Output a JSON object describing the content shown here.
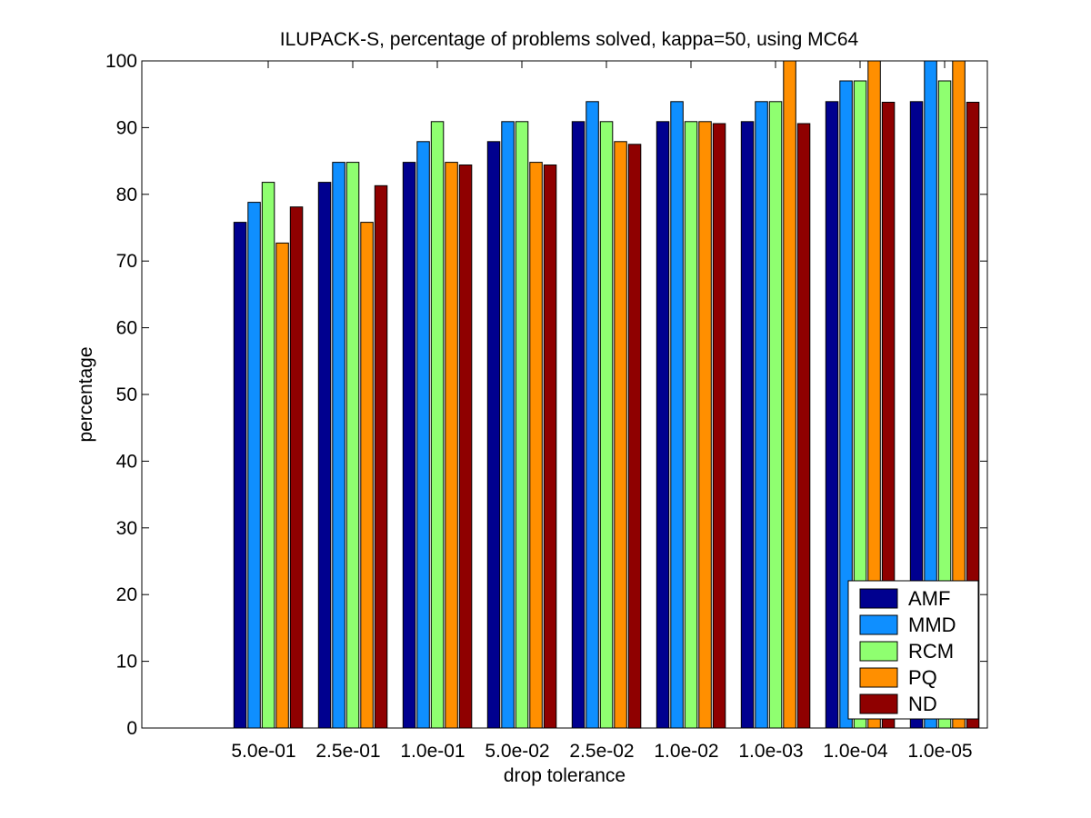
{
  "chart_data": {
    "type": "bar",
    "title": "ILUPACK-S, percentage of problems solved, kappa=50, using MC64",
    "xlabel": "drop tolerance",
    "ylabel": "percentage",
    "ylim": [
      0,
      100
    ],
    "yticks": [
      "0",
      "10",
      "20",
      "30",
      "40",
      "50",
      "60",
      "70",
      "80",
      "90",
      "100"
    ],
    "categories": [
      "5.0e-01",
      "2.5e-01",
      "1.0e-01",
      "5.0e-02",
      "2.5e-02",
      "1.0e-02",
      "1.0e-03",
      "1.0e-04",
      "1.0e-05"
    ],
    "series": [
      {
        "name": "AMF",
        "color": "#00008f",
        "values": [
          75.8,
          81.8,
          84.8,
          87.9,
          90.9,
          90.9,
          90.9,
          93.9,
          93.9
        ]
      },
      {
        "name": "MMD",
        "color": "#0f8fff",
        "values": [
          78.8,
          84.8,
          87.9,
          90.9,
          93.9,
          93.9,
          93.9,
          97.0,
          100
        ]
      },
      {
        "name": "RCM",
        "color": "#8fff70",
        "values": [
          81.8,
          84.8,
          90.9,
          90.9,
          90.9,
          90.9,
          93.9,
          97.0,
          97.0
        ]
      },
      {
        "name": "PQ",
        "color": "#ff8f00",
        "values": [
          72.7,
          75.8,
          84.8,
          84.8,
          87.9,
          90.9,
          100,
          100,
          100
        ]
      },
      {
        "name": "ND",
        "color": "#8f0000",
        "values": [
          78.1,
          81.3,
          84.4,
          84.4,
          87.5,
          90.6,
          90.6,
          93.8,
          93.8
        ]
      }
    ],
    "grid": false,
    "legend": "bottom-right"
  }
}
